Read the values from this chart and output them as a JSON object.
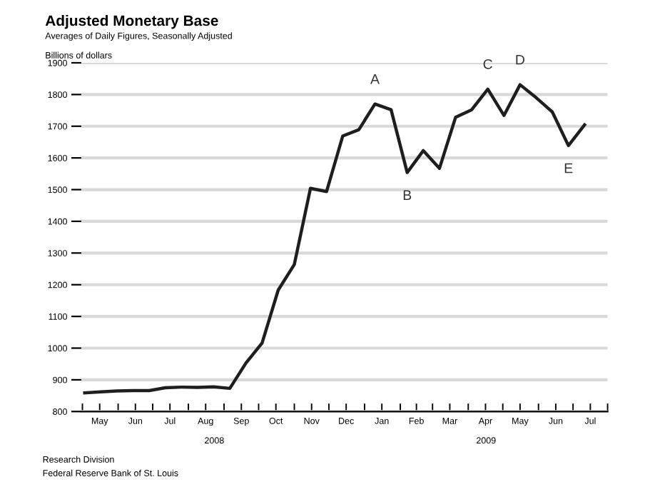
{
  "chart_data": {
    "type": "line",
    "title": "Adjusted Monetary Base",
    "subtitle": "Averages of Daily Figures, Seasonally Adjusted",
    "ylabel": "Billions of dollars",
    "x": [
      "2008-05-03",
      "2008-05-17",
      "2008-05-31",
      "2008-06-14",
      "2008-06-28",
      "2008-07-12",
      "2008-07-26",
      "2008-08-09",
      "2008-08-23",
      "2008-09-06",
      "2008-09-20",
      "2008-10-04",
      "2008-10-18",
      "2008-11-01",
      "2008-11-15",
      "2008-11-29",
      "2008-12-13",
      "2008-12-27",
      "2009-01-10",
      "2009-01-24",
      "2009-02-07",
      "2009-02-21",
      "2009-03-07",
      "2009-03-21",
      "2009-04-04",
      "2009-04-18",
      "2009-05-02",
      "2009-05-16",
      "2009-05-30",
      "2009-06-13",
      "2009-06-27",
      "2009-07-11"
    ],
    "series": [
      {
        "color": "#1e1e1e",
        "values": [
          859,
          862,
          865,
          866,
          866,
          875,
          877,
          876,
          878,
          873,
          953,
          1016,
          1183,
          1264,
          1504,
          1494,
          1669,
          1689,
          1770,
          1752,
          1554,
          1623,
          1567,
          1728,
          1752,
          1817,
          1734,
          1831,
          1790,
          1745,
          1639,
          1704
        ]
      }
    ],
    "xlim": [
      "2008-04-30",
      "2009-07-31"
    ],
    "xticks": [
      {
        "value": "2008-05-01",
        "label": null
      },
      {
        "value": "2008-05-16",
        "label": "May"
      },
      {
        "value": "2008-06-01",
        "label": null
      },
      {
        "value": "2008-06-16",
        "label": "Jun"
      },
      {
        "value": "2008-07-01",
        "label": null
      },
      {
        "value": "2008-07-16",
        "label": "Jul"
      },
      {
        "value": "2008-08-01",
        "label": null
      },
      {
        "value": "2008-08-16",
        "label": "Aug"
      },
      {
        "value": "2008-09-01",
        "label": null
      },
      {
        "value": "2008-09-16",
        "label": "Sep"
      },
      {
        "value": "2008-10-01",
        "label": null
      },
      {
        "value": "2008-10-16",
        "label": "Oct"
      },
      {
        "value": "2008-11-01",
        "label": null
      },
      {
        "value": "2008-11-16",
        "label": "Nov"
      },
      {
        "value": "2008-12-01",
        "label": null
      },
      {
        "value": "2008-12-16",
        "label": "Dec"
      },
      {
        "value": "2009-01-01",
        "label": null
      },
      {
        "value": "2009-01-16",
        "label": "Jan"
      },
      {
        "value": "2009-02-01",
        "label": null
      },
      {
        "value": "2009-02-15",
        "label": "Feb"
      },
      {
        "value": "2009-03-01",
        "label": null
      },
      {
        "value": "2009-03-16",
        "label": "Mar"
      },
      {
        "value": "2009-04-01",
        "label": null
      },
      {
        "value": "2009-04-16",
        "label": "Apr"
      },
      {
        "value": "2009-05-01",
        "label": null
      },
      {
        "value": "2009-05-16",
        "label": "May"
      },
      {
        "value": "2009-06-01",
        "label": null
      },
      {
        "value": "2009-06-16",
        "label": "Jun"
      },
      {
        "value": "2009-07-01",
        "label": null
      },
      {
        "value": "2009-07-16",
        "label": "Jul"
      },
      {
        "value": "2009-07-31",
        "label": null
      }
    ],
    "ylim": [
      800,
      1900
    ],
    "yticks": [
      800,
      900,
      1000,
      1100,
      1200,
      1300,
      1400,
      1500,
      1600,
      1700,
      1800,
      1900
    ],
    "grid": "y",
    "marker": "none",
    "line_style": "solid",
    "annotations": [
      "2008",
      "2009",
      "Research Division",
      "Federal Reserve Bank of St. Louis",
      {
        "text": "A",
        "x": "2009-01-10",
        "y": 1770
      },
      {
        "text": "B",
        "x": "2009-02-07",
        "y": 1554
      },
      {
        "text": "C",
        "x": "2009-04-18",
        "y": 1817
      },
      {
        "text": "D",
        "x": "2009-05-16",
        "y": 1831
      },
      {
        "text": "E",
        "x": "2009-06-27",
        "y": 1639
      }
    ]
  }
}
